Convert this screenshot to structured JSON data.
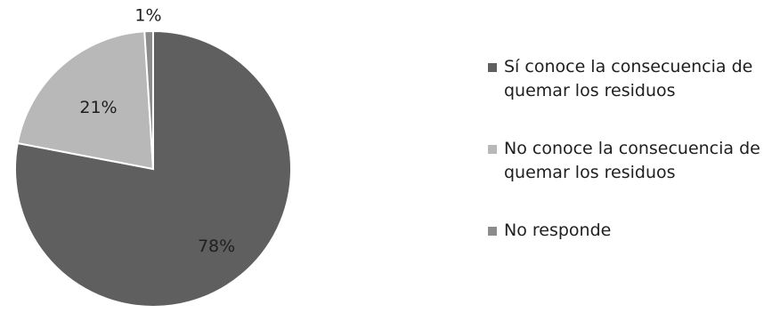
{
  "chart_data": {
    "type": "pie",
    "title": "",
    "categories": [
      "Sí conoce la consecuencia de quemar los residuos",
      "No conoce la consecuencia de quemar los residuos",
      "No responde"
    ],
    "values": [
      78,
      21,
      1
    ],
    "labels": [
      "78%",
      "21%",
      "1%"
    ],
    "colors": [
      "#5f5f5f",
      "#b8b8b8",
      "#8c8c8c"
    ],
    "legend_position": "right",
    "start_angle_deg": 0,
    "direction": "clockwise"
  },
  "legend": {
    "items": [
      {
        "label": "Sí conoce la consecuencia de quemar los residuos",
        "color": "#5f5f5f"
      },
      {
        "label": "No conoce la consecuencia de quemar los residuos",
        "color": "#b8b8b8"
      },
      {
        "label": "No responde",
        "color": "#8c8c8c"
      }
    ]
  }
}
